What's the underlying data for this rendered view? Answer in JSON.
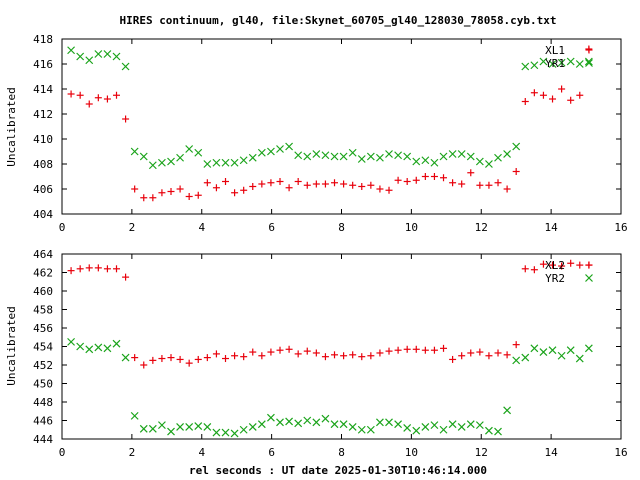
{
  "title": "HIRES continuum, gl40, file:Skynet_60705_gl40_128030_78058.cyb.txt",
  "xlabel": "rel seconds : UT date 2025-01-30T10:46:14.000",
  "colors": {
    "red_series": "#e8000b",
    "green_series": "#1aa31a",
    "axis": "#000000"
  },
  "chart_data": [
    {
      "type": "scatter",
      "ylabel": "Uncalibrated",
      "xlim": [
        0,
        16
      ],
      "ylim": [
        404,
        418
      ],
      "xticks": [
        0,
        2,
        4,
        6,
        8,
        10,
        12,
        14,
        16
      ],
      "yticks": [
        404,
        406,
        408,
        410,
        412,
        414,
        416,
        418
      ],
      "legend_position": "top-right",
      "grid": false,
      "series": [
        {
          "name": "XL1",
          "marker": "plus",
          "color": "#e8000b",
          "x": [
            0.26,
            0.52,
            0.78,
            1.04,
            1.3,
            1.56,
            1.82,
            2.08,
            2.34,
            2.6,
            2.86,
            3.12,
            3.38,
            3.64,
            3.9,
            4.16,
            4.42,
            4.68,
            4.94,
            5.2,
            5.46,
            5.72,
            5.98,
            6.24,
            6.5,
            6.76,
            7.02,
            7.28,
            7.54,
            7.8,
            8.06,
            8.32,
            8.58,
            8.84,
            9.1,
            9.36,
            9.62,
            9.88,
            10.14,
            10.4,
            10.66,
            10.92,
            11.18,
            11.44,
            11.7,
            11.96,
            12.22,
            12.48,
            12.74,
            13.0,
            13.26,
            13.52,
            13.78,
            14.04,
            14.3,
            14.56,
            14.82,
            15.08
          ],
          "y": [
            413.6,
            413.5,
            412.8,
            413.3,
            413.2,
            413.5,
            411.6,
            406.0,
            405.3,
            405.3,
            405.7,
            405.8,
            406.0,
            405.4,
            405.5,
            406.5,
            406.1,
            406.6,
            405.7,
            405.9,
            406.2,
            406.4,
            406.5,
            406.6,
            406.1,
            406.6,
            406.3,
            406.4,
            406.4,
            406.5,
            406.4,
            406.3,
            406.2,
            406.3,
            406.0,
            405.9,
            406.7,
            406.6,
            406.7,
            407.0,
            407.0,
            406.9,
            406.5,
            406.4,
            407.3,
            406.3,
            406.3,
            406.5,
            406.0,
            407.4,
            413.0,
            413.7,
            413.5,
            413.2,
            414.0,
            413.1,
            413.5,
            417.2
          ]
        },
        {
          "name": "YR1",
          "marker": "cross",
          "color": "#1aa31a",
          "x": [
            0.26,
            0.52,
            0.78,
            1.04,
            1.3,
            1.56,
            1.82,
            2.08,
            2.34,
            2.6,
            2.86,
            3.12,
            3.38,
            3.64,
            3.9,
            4.16,
            4.42,
            4.68,
            4.94,
            5.2,
            5.46,
            5.72,
            5.98,
            6.24,
            6.5,
            6.76,
            7.02,
            7.28,
            7.54,
            7.8,
            8.06,
            8.32,
            8.58,
            8.84,
            9.1,
            9.36,
            9.62,
            9.88,
            10.14,
            10.4,
            10.66,
            10.92,
            11.18,
            11.44,
            11.7,
            11.96,
            12.22,
            12.48,
            12.74,
            13.0,
            13.26,
            13.52,
            13.78,
            14.04,
            14.3,
            14.56,
            14.82,
            15.08
          ],
          "y": [
            417.1,
            416.6,
            416.3,
            416.8,
            416.8,
            416.6,
            415.8,
            409.0,
            408.6,
            407.9,
            408.1,
            408.2,
            408.5,
            409.2,
            408.9,
            408.0,
            408.1,
            408.1,
            408.1,
            408.3,
            408.5,
            408.9,
            409.0,
            409.2,
            409.4,
            408.7,
            408.6,
            408.8,
            408.7,
            408.6,
            408.6,
            408.9,
            408.4,
            408.6,
            408.5,
            408.8,
            408.7,
            408.6,
            408.2,
            408.3,
            408.1,
            408.6,
            408.8,
            408.8,
            408.6,
            408.2,
            408.0,
            408.5,
            408.8,
            409.4,
            415.8,
            415.9,
            416.2,
            416.0,
            416.1,
            416.2,
            416.0,
            416.2
          ]
        }
      ]
    },
    {
      "type": "scatter",
      "ylabel": "Uncalibrated",
      "xlim": [
        0,
        16
      ],
      "ylim": [
        444,
        464
      ],
      "xticks": [
        0,
        2,
        4,
        6,
        8,
        10,
        12,
        14,
        16
      ],
      "yticks": [
        444,
        446,
        448,
        450,
        452,
        454,
        456,
        458,
        460,
        462,
        464
      ],
      "legend_position": "top-right",
      "grid": false,
      "series": [
        {
          "name": "XL2",
          "marker": "plus",
          "color": "#e8000b",
          "x": [
            0.26,
            0.52,
            0.78,
            1.04,
            1.3,
            1.56,
            1.82,
            2.08,
            2.34,
            2.6,
            2.86,
            3.12,
            3.38,
            3.64,
            3.9,
            4.16,
            4.42,
            4.68,
            4.94,
            5.2,
            5.46,
            5.72,
            5.98,
            6.24,
            6.5,
            6.76,
            7.02,
            7.28,
            7.54,
            7.8,
            8.06,
            8.32,
            8.58,
            8.84,
            9.1,
            9.36,
            9.62,
            9.88,
            10.14,
            10.4,
            10.66,
            10.92,
            11.18,
            11.44,
            11.7,
            11.96,
            12.22,
            12.48,
            12.74,
            13.0,
            13.26,
            13.52,
            13.78,
            14.04,
            14.3,
            14.56,
            14.82,
            15.08
          ],
          "y": [
            462.2,
            462.4,
            462.5,
            462.5,
            462.4,
            462.4,
            461.5,
            452.8,
            452.0,
            452.5,
            452.7,
            452.8,
            452.6,
            452.2,
            452.6,
            452.8,
            453.2,
            452.7,
            453.0,
            452.9,
            453.4,
            453.0,
            453.4,
            453.6,
            453.7,
            453.2,
            453.5,
            453.3,
            452.9,
            453.1,
            453.0,
            453.1,
            452.9,
            453.0,
            453.3,
            453.5,
            453.6,
            453.7,
            453.7,
            453.6,
            453.6,
            453.8,
            452.6,
            453.0,
            453.3,
            453.4,
            453.0,
            453.3,
            453.1,
            454.2,
            462.4,
            462.3,
            462.9,
            462.8,
            462.7,
            463.0,
            462.8,
            462.8
          ]
        },
        {
          "name": "YR2",
          "marker": "cross",
          "color": "#1aa31a",
          "x": [
            0.26,
            0.52,
            0.78,
            1.04,
            1.3,
            1.56,
            1.82,
            2.08,
            2.34,
            2.6,
            2.86,
            3.12,
            3.38,
            3.64,
            3.9,
            4.16,
            4.42,
            4.68,
            4.94,
            5.2,
            5.46,
            5.72,
            5.98,
            6.24,
            6.5,
            6.76,
            7.02,
            7.28,
            7.54,
            7.8,
            8.06,
            8.32,
            8.58,
            8.84,
            9.1,
            9.36,
            9.62,
            9.88,
            10.14,
            10.4,
            10.66,
            10.92,
            11.18,
            11.44,
            11.7,
            11.96,
            12.22,
            12.48,
            12.74,
            13.0,
            13.26,
            13.52,
            13.78,
            14.04,
            14.3,
            14.56,
            14.82,
            15.08
          ],
          "y": [
            454.5,
            454.0,
            453.7,
            453.9,
            453.8,
            454.3,
            452.8,
            446.5,
            445.1,
            445.1,
            445.5,
            444.8,
            445.3,
            445.3,
            445.4,
            445.3,
            444.7,
            444.7,
            444.6,
            445.0,
            445.3,
            445.6,
            446.3,
            445.8,
            445.9,
            445.7,
            446.0,
            445.8,
            446.2,
            445.6,
            445.6,
            445.3,
            445.0,
            445.0,
            445.8,
            445.8,
            445.6,
            445.2,
            444.9,
            445.3,
            445.5,
            445.0,
            445.6,
            445.3,
            445.6,
            445.5,
            444.9,
            444.8,
            447.1,
            452.5,
            452.8,
            453.8,
            453.4,
            453.6,
            453.0,
            453.6,
            452.7,
            453.8
          ]
        }
      ]
    }
  ]
}
